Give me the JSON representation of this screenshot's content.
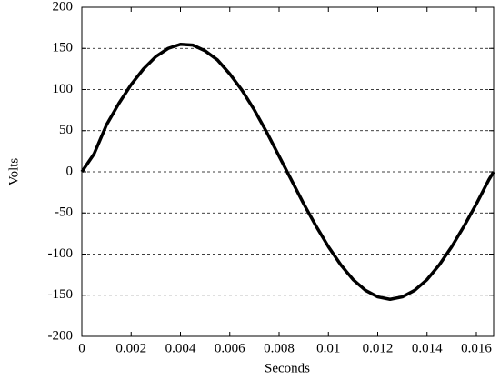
{
  "chart_data": {
    "type": "line",
    "x_label": "Seconds",
    "y_label": "Volts",
    "x": [
      0,
      0.0005,
      0.001,
      0.0015,
      0.002,
      0.0025,
      0.003,
      0.0035,
      0.004,
      0.0045,
      0.005,
      0.0055,
      0.006,
      0.0065,
      0.007,
      0.0075,
      0.008,
      0.0085,
      0.009,
      0.0095,
      0.01,
      0.0105,
      0.011,
      0.0115,
      0.012,
      0.0125,
      0.013,
      0.0135,
      0.014,
      0.0145,
      0.015,
      0.0155,
      0.016,
      0.0165,
      0.0167
    ],
    "values": [
      0,
      22,
      57,
      83,
      106,
      125,
      140,
      150,
      155,
      154,
      147,
      136,
      119,
      99,
      75,
      48,
      19,
      -10,
      -39,
      -66,
      -91,
      -113,
      -131,
      -144,
      -152,
      -155,
      -152,
      -144,
      -131,
      -113,
      -91,
      -66,
      -39,
      -10,
      0
    ],
    "color": "#000000",
    "xlim": [
      0,
      0.0167
    ],
    "ylim": [
      -200,
      200
    ],
    "xticks": [
      0,
      0.002,
      0.004,
      0.006,
      0.008,
      0.01,
      0.012,
      0.014,
      0.016
    ],
    "yticks": [
      -200,
      -150,
      -100,
      -50,
      0,
      50,
      100,
      150,
      200
    ],
    "grid": true
  }
}
